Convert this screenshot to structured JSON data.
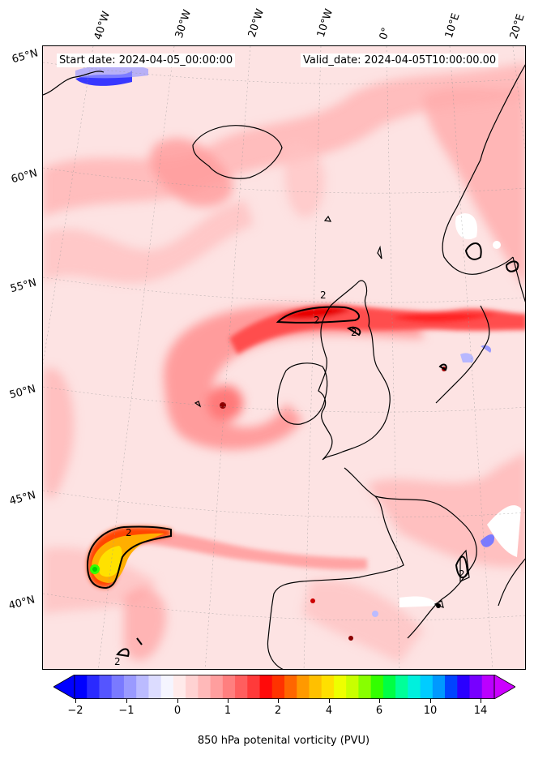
{
  "header": {
    "start_label": "Start date: 2024-04-05_00:00:00",
    "valid_label": "Valid_date: 2024-04-05T10:00:00.00"
  },
  "longitude_labels": [
    "40°W",
    "30°W",
    "20°W",
    "10°W",
    "0°",
    "10°E",
    "20°E"
  ],
  "latitude_labels": [
    "65°N",
    "60°N",
    "55°N",
    "50°N",
    "45°N",
    "40°N"
  ],
  "colorbar": {
    "label": "850 hPa potenital vorticity (PVU)",
    "tick_labels": [
      "−2",
      "−1",
      "0",
      "1",
      "2",
      "4",
      "6",
      "10",
      "14"
    ],
    "colors": [
      "#0000ff",
      "#2a2aff",
      "#5555ff",
      "#7a7aff",
      "#9a9aff",
      "#bbbbff",
      "#dcdcff",
      "#f5f5ff",
      "#ffeaea",
      "#ffd2d2",
      "#ffb9b9",
      "#ff9e9e",
      "#ff7f7f",
      "#ff5e5e",
      "#ff3a3a",
      "#ff0a0a",
      "#ff3300",
      "#ff6600",
      "#ff9900",
      "#ffc000",
      "#ffe000",
      "#eeff00",
      "#c8ff00",
      "#88ff00",
      "#33ff00",
      "#00ff44",
      "#00ff99",
      "#00f0dd",
      "#00ccff",
      "#0099ff",
      "#0044ff",
      "#2a00ff",
      "#7700ff",
      "#bb00ff"
    ],
    "extend_min_color": "#0000ff",
    "extend_max_color": "#cc00ff"
  },
  "contour_labels": [
    "2",
    "2",
    "2",
    "2",
    "2",
    "2"
  ]
}
